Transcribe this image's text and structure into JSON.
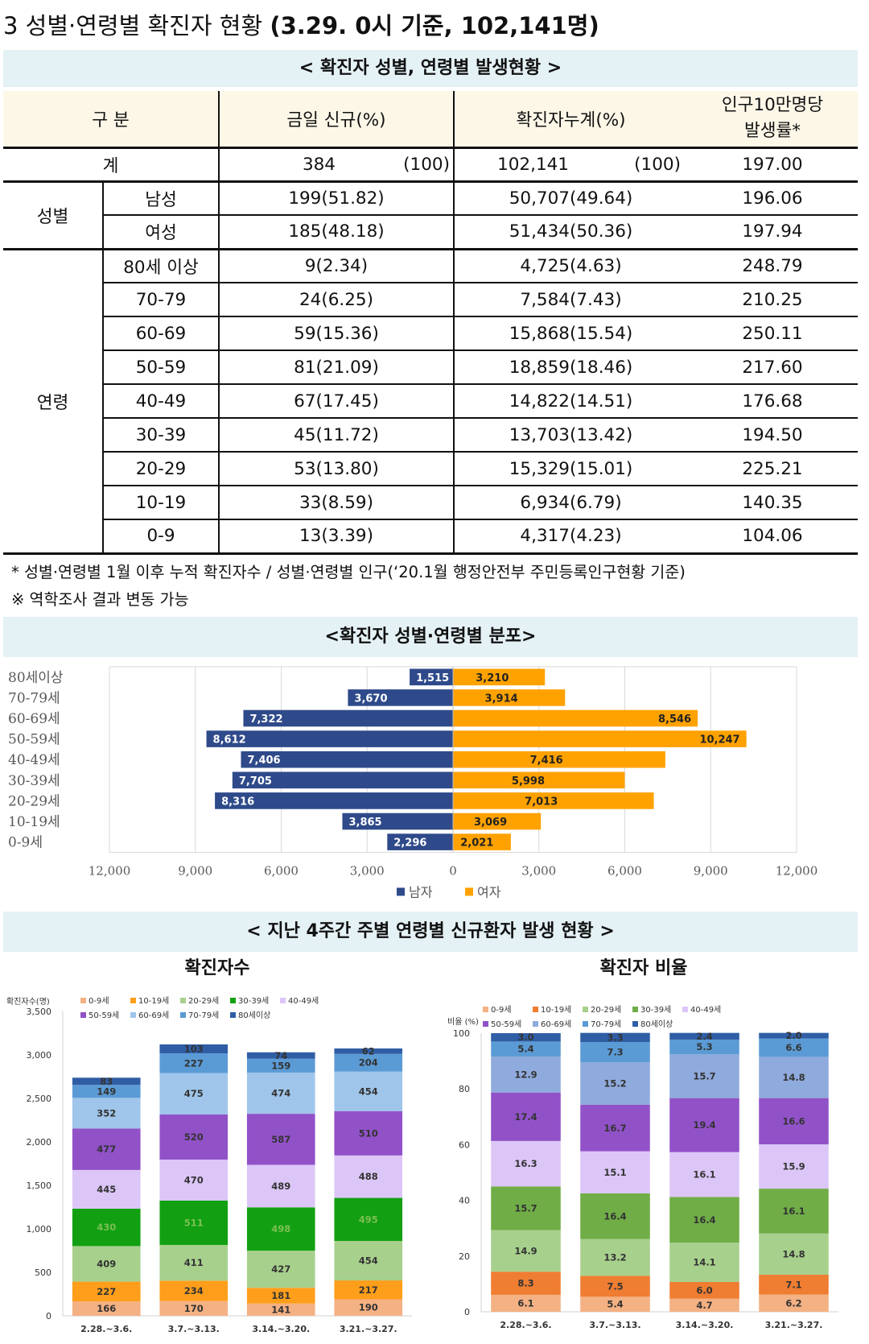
{
  "heading": {
    "prefix": "3  성별·연령별 확진자 현황 ",
    "bold": "(3.29. 0시 기준, 102,141명)"
  },
  "table": {
    "caption": "< 확진자 성별, 연령별 발생현황 >",
    "headers": {
      "category": "구 분",
      "new": "금일 신규(%)",
      "cumulative": "확진자누계(%)",
      "rate_line1": "인구10만명당",
      "rate_line2": "발생률*"
    },
    "total": {
      "label": "계",
      "new": "384",
      "new_pct": "(100)",
      "cum": "102,141",
      "cum_pct": "(100)",
      "rate": "197.00"
    },
    "sex_group": "성별",
    "sex_rows": [
      {
        "label": "남성",
        "new": "199(51.82)",
        "cum": "50,707(49.64)",
        "rate": "196.06"
      },
      {
        "label": "여성",
        "new": "185(48.18)",
        "cum": "51,434(50.36)",
        "rate": "197.94"
      }
    ],
    "age_group": "연령",
    "age_rows": [
      {
        "label": "80세 이상",
        "new": "9(2.34)",
        "cum": "4,725(4.63)",
        "rate": "248.79"
      },
      {
        "label": "70-79",
        "new": "24(6.25)",
        "cum": "7,584(7.43)",
        "rate": "210.25"
      },
      {
        "label": "60-69",
        "new": "59(15.36)",
        "cum": "15,868(15.54)",
        "rate": "250.11"
      },
      {
        "label": "50-59",
        "new": "81(21.09)",
        "cum": "18,859(18.46)",
        "rate": "217.60"
      },
      {
        "label": "40-49",
        "new": "67(17.45)",
        "cum": "14,822(14.51)",
        "rate": "176.68"
      },
      {
        "label": "30-39",
        "new": "45(11.72)",
        "cum": "13,703(13.42)",
        "rate": "194.50"
      },
      {
        "label": "20-29",
        "new": "53(13.80)",
        "cum": "15,329(15.01)",
        "rate": "225.21"
      },
      {
        "label": "10-19",
        "new": "33(8.59)",
        "cum": "6,934(6.79)",
        "rate": "140.35"
      },
      {
        "label": "0-9",
        "new": "13(3.39)",
        "cum": "4,317(4.23)",
        "rate": "104.06"
      }
    ]
  },
  "notes": [
    "* 성별·연령별 1월 이후 누적 확진자수 / 성별·연령별 인구(‘20.1월 행정안전부 주민등록인구현황 기준)",
    "※ 역학조사 결과 변동 가능"
  ],
  "colors": {
    "male": "#2e4a8a",
    "female": "#ffa200",
    "band": "#e4f1f5",
    "header": "#fdf7e8",
    "age": [
      "#f4b183",
      "#ff9e1b",
      "#a8d08d",
      "#12a012",
      "#dcc6f7",
      "#9152c8",
      "#9fc5ea",
      "#5b9bd5",
      "#2f5ea5"
    ],
    "age_pct": [
      "#f4b183",
      "#ef7d32",
      "#a8d08d",
      "#70ad47",
      "#dcc6f7",
      "#9152c8",
      "#8faadc",
      "#5b9bd5",
      "#2f5ea5"
    ]
  },
  "chart_data": [
    {
      "type": "bar",
      "orientation": "horizontal",
      "title": "<확진자 성별·연령별 분포>",
      "categories": [
        "80세이상",
        "70-79세",
        "60-69세",
        "50-59세",
        "40-49세",
        "30-39세",
        "20-29세",
        "10-19세",
        "0-9세"
      ],
      "series": [
        {
          "name": "남자",
          "values": [
            1515,
            3670,
            7322,
            8612,
            7406,
            7705,
            8316,
            3865,
            2296
          ]
        },
        {
          "name": "여자",
          "values": [
            3210,
            3914,
            8546,
            10247,
            7416,
            5998,
            7013,
            3069,
            2021
          ]
        }
      ],
      "value_labels": {
        "male": [
          "1,515",
          "3,670",
          "7,322",
          "8,612",
          "7,406",
          "7,705",
          "8,316",
          "3,865",
          "2,296"
        ],
        "female": [
          "3,210",
          "3,914",
          "8,546",
          "10,247",
          "7,416",
          "5,998",
          "7,013",
          "3,069",
          "2,021"
        ]
      },
      "xlim": [
        -12000,
        12000
      ],
      "x_ticks": [
        "12,000",
        "9,000",
        "6,000",
        "3,000",
        "0",
        "3,000",
        "6,000",
        "9,000",
        "12,000"
      ],
      "legend": "bottom"
    },
    {
      "type": "bar",
      "stacked": true,
      "section_title": "< 지난 4주간 주별 연령별 신규환자 발생 현황 >",
      "title": "확진자수",
      "ylabel": "확진자수(명)",
      "categories": [
        "2.28.~3.6.",
        "3.7.~3.13.",
        "3.14.~3.20.",
        "3.21.~3.27."
      ],
      "ylim": [
        0,
        3500
      ],
      "y_ticks": [
        "0",
        "500",
        "1,000",
        "1,500",
        "2,000",
        "2,500",
        "3,000",
        "3,500"
      ],
      "series": [
        {
          "name": "0-9세",
          "values": [
            166,
            170,
            141,
            190
          ]
        },
        {
          "name": "10-19세",
          "values": [
            227,
            234,
            181,
            217
          ]
        },
        {
          "name": "20-29세",
          "values": [
            409,
            411,
            427,
            454
          ]
        },
        {
          "name": "30-39세",
          "values": [
            430,
            511,
            498,
            495
          ]
        },
        {
          "name": "40-49세",
          "values": [
            445,
            470,
            489,
            488
          ]
        },
        {
          "name": "50-59세",
          "values": [
            477,
            520,
            587,
            510
          ]
        },
        {
          "name": "60-69세",
          "values": [
            352,
            475,
            474,
            454
          ]
        },
        {
          "name": "70-79세",
          "values": [
            149,
            227,
            159,
            204
          ]
        },
        {
          "name": "80세이상",
          "values": [
            83,
            103,
            74,
            62
          ]
        }
      ],
      "legend": "top"
    },
    {
      "type": "bar",
      "stacked": true,
      "title": "확진자 비율",
      "ylabel": "비율 (%)",
      "categories": [
        "2.28.~3.6.",
        "3.7.~3.13.",
        "3.14.~3.20.",
        "3.21.~3.27."
      ],
      "ylim": [
        0,
        100
      ],
      "y_ticks": [
        "0",
        "20",
        "40",
        "60",
        "80",
        "100"
      ],
      "series": [
        {
          "name": "0-9세",
          "values": [
            6.1,
            5.4,
            4.7,
            6.2
          ]
        },
        {
          "name": "10-19세",
          "values": [
            8.3,
            7.5,
            6.0,
            7.1
          ]
        },
        {
          "name": "20-29세",
          "values": [
            14.9,
            13.2,
            14.1,
            14.8
          ]
        },
        {
          "name": "30-39세",
          "values": [
            15.7,
            16.4,
            16.4,
            16.1
          ]
        },
        {
          "name": "40-49세",
          "values": [
            16.3,
            15.1,
            16.1,
            15.9
          ]
        },
        {
          "name": "50-59세",
          "values": [
            17.4,
            16.7,
            19.4,
            16.6
          ]
        },
        {
          "name": "60-69세",
          "values": [
            12.9,
            15.2,
            15.7,
            14.8
          ]
        },
        {
          "name": "70-79세",
          "values": [
            5.4,
            7.3,
            5.3,
            6.6
          ]
        },
        {
          "name": "80세이상",
          "values": [
            3.0,
            3.3,
            2.4,
            2.0
          ]
        }
      ],
      "value_labels": [
        [
          "6.1",
          "8.3",
          "14.9",
          "15.7",
          "16.3",
          "17.4",
          "12.9",
          "5.4",
          "3.0"
        ],
        [
          "5.4",
          "7.5",
          "13.2",
          "16.4",
          "15.1",
          "16.7",
          "15.2",
          "7.3",
          "3.3"
        ],
        [
          "4.7",
          "6.0",
          "14.1",
          "16.4",
          "16.1",
          "19.4",
          "15.7",
          "5.3",
          "2.4"
        ],
        [
          "6.2",
          "7.1",
          "14.8",
          "16.1",
          "15.9",
          "16.6",
          "14.8",
          "6.6",
          "2.0"
        ]
      ],
      "legend": "top"
    }
  ]
}
